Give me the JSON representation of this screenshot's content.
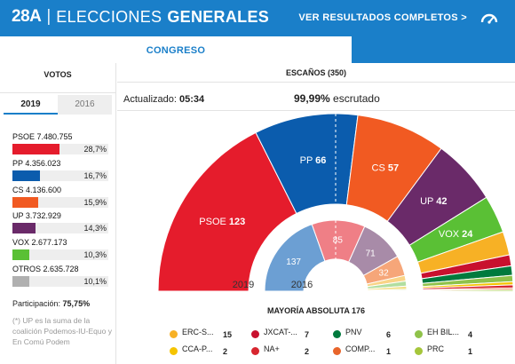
{
  "header": {
    "brand_28a": "28A",
    "brand_sep": "|",
    "brand_elecciones": "ELECCIONES",
    "brand_generales": "GENERALES",
    "results_link": "VER RESULTADOS COMPLETOS >",
    "accent": "#1a7fc9"
  },
  "chamber": {
    "tab_label": "CONGRESO"
  },
  "votes": {
    "title": "VOTOS",
    "years": [
      "2019",
      "2016"
    ],
    "rows": [
      {
        "label": "PSOE 7.480.755",
        "pct_text": "28,7%",
        "share": 28.7,
        "color": "#e51c2c"
      },
      {
        "label": "PP 4.356.023",
        "pct_text": "16,7%",
        "share": 16.7,
        "color": "#0b5cad"
      },
      {
        "label": "CS 4.136.600",
        "pct_text": "15,9%",
        "share": 15.9,
        "color": "#f15a22"
      },
      {
        "label": "UP 3.732.929",
        "pct_text": "14,3%",
        "share": 14.3,
        "color": "#6a2a69"
      },
      {
        "label": "VOX 2.677.173",
        "pct_text": "10,3%",
        "share": 10.3,
        "color": "#5ac035"
      },
      {
        "label": "OTROS 2.635.728",
        "pct_text": "10,1%",
        "share": 10.1,
        "color": "#b0b0b0"
      }
    ],
    "participation_label": "Participación:",
    "participation_value": "75,75%",
    "note": "(*) UP es la suma de la coalición Podemos-IU-Equo y En Comú Podem"
  },
  "seats": {
    "title": "ESCAÑOS (350)",
    "updated_label": "Actualizado:",
    "updated_time": "05:34",
    "counted_value": "99,99%",
    "counted_label": "escrutado",
    "total": 350,
    "outer_label": "2019",
    "inner_label": "2016",
    "outer_2019": [
      {
        "party": "PSOE",
        "seats": 123,
        "color": "#e51c2c",
        "label": "PSOE"
      },
      {
        "party": "PP",
        "seats": 66,
        "color": "#0b5cad",
        "label": "PP"
      },
      {
        "party": "CS",
        "seats": 57,
        "color": "#f15a22",
        "label": "CS"
      },
      {
        "party": "UP",
        "seats": 42,
        "color": "#6a2a69",
        "label": "UP"
      },
      {
        "party": "VOX",
        "seats": 24,
        "color": "#5ac035",
        "label": "VOX"
      },
      {
        "party": "ERC-S...",
        "seats": 15,
        "color": "#f7b125",
        "label": ""
      },
      {
        "party": "JXCAT-...",
        "seats": 7,
        "color": "#c8102e",
        "label": ""
      },
      {
        "party": "PNV",
        "seats": 6,
        "color": "#007a3d",
        "label": ""
      },
      {
        "party": "EH BIL...",
        "seats": 4,
        "color": "#8fc24a",
        "label": ""
      },
      {
        "party": "CCA-P...",
        "seats": 2,
        "color": "#f5c400",
        "label": ""
      },
      {
        "party": "NA+",
        "seats": 2,
        "color": "#d7262f",
        "label": ""
      },
      {
        "party": "COMP...",
        "seats": 1,
        "color": "#e8652b",
        "label": ""
      },
      {
        "party": "PRC",
        "seats": 1,
        "color": "#a5c63b",
        "label": ""
      }
    ],
    "inner_2016": [
      {
        "party": "PP",
        "seats": 137,
        "color": "#6c9fd3",
        "label": "137"
      },
      {
        "party": "PSOE",
        "seats": 85,
        "color": "#ef7f86",
        "label": "85"
      },
      {
        "party": "UP",
        "seats": 71,
        "color": "#a88ba8",
        "label": "71"
      },
      {
        "party": "CS",
        "seats": 32,
        "color": "#f6a679",
        "label": "32"
      },
      {
        "party": "ERC",
        "seats": 9,
        "color": "#f9d487",
        "label": ""
      },
      {
        "party": "CDC",
        "seats": 8,
        "color": "#b2dea0",
        "label": ""
      },
      {
        "party": "PNV",
        "seats": 5,
        "color": "#f2e08a",
        "label": ""
      },
      {
        "party": "BILDU",
        "seats": 2,
        "color": "#c6e09a",
        "label": ""
      },
      {
        "party": "CC",
        "seats": 1,
        "color": "#f9b9a9",
        "label": ""
      }
    ],
    "majority_label": "MAYORÍA ABSOLUTA 176",
    "legend": [
      {
        "name": "ERC-S...",
        "seats": "15",
        "color": "#f7b125"
      },
      {
        "name": "JXCAT-...",
        "seats": "7",
        "color": "#c8102e"
      },
      {
        "name": "PNV",
        "seats": "6",
        "color": "#007a3d"
      },
      {
        "name": "EH BIL...",
        "seats": "4",
        "color": "#8fc24a"
      },
      {
        "name": "CCA-P...",
        "seats": "2",
        "color": "#f5c400"
      },
      {
        "name": "NA+",
        "seats": "2",
        "color": "#d7262f"
      },
      {
        "name": "COMP...",
        "seats": "1",
        "color": "#e8652b"
      },
      {
        "name": "PRC",
        "seats": "1",
        "color": "#a5c63b"
      }
    ]
  }
}
